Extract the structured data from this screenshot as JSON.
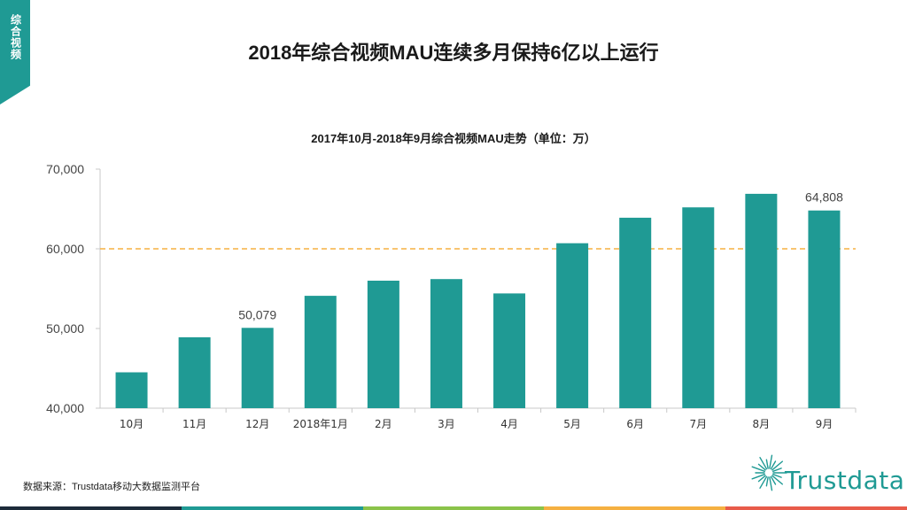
{
  "corner_label": "综合视频",
  "page_title": "2018年综合视频MAU连续多月保持6亿以上运行",
  "source_note": "数据来源：Trustdata移动大数据监测平台",
  "brand_name": "Trustdata",
  "colors": {
    "bar": "#1f9a94",
    "reference_line": "#f5b041",
    "axis": "#c8c8c8",
    "strip": [
      "#1d2b3a",
      "#1f9a94",
      "#8bc34a",
      "#f5b041",
      "#e85b4a"
    ]
  },
  "chart_data": {
    "type": "bar",
    "title": "2017年10月-2018年9月综合视频MAU走势（单位：万）",
    "categories": [
      "10月",
      "11月",
      "12月",
      "2018年1月",
      "2月",
      "3月",
      "4月",
      "5月",
      "6月",
      "7月",
      "8月",
      "9月"
    ],
    "values": [
      44500,
      48900,
      50079,
      54100,
      56000,
      56200,
      54400,
      60700,
      63900,
      65200,
      66900,
      64808
    ],
    "data_labels": [
      {
        "index": 2,
        "text": "50,079"
      },
      {
        "index": 11,
        "text": "64,808"
      }
    ],
    "ylim": [
      40000,
      70000
    ],
    "yticks": [
      40000,
      50000,
      60000,
      70000
    ],
    "ytick_labels": [
      "40,000",
      "50,000",
      "60,000",
      "70,000"
    ],
    "reference_line": 60000,
    "grid": false,
    "xlabel": "",
    "ylabel": ""
  }
}
